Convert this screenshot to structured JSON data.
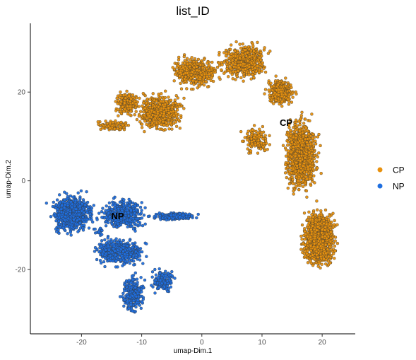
{
  "chart_data": {
    "type": "scatter",
    "title": "list_ID",
    "xlabel": "umap-Dim.1",
    "ylabel": "umap-Dim.2",
    "xlim": [
      -28.5,
      25.5
    ],
    "ylim": [
      -34.5,
      35.5
    ],
    "x_ticks": [
      -20,
      -10,
      0,
      10,
      20
    ],
    "y_ticks": [
      20,
      0,
      -20
    ],
    "x_tick_labels": [
      "-20",
      "-10",
      "0",
      "10",
      "20"
    ],
    "y_tick_labels": [
      "20",
      "0",
      "-20"
    ],
    "grid": false,
    "legend_position": "right",
    "legend": [
      {
        "name": "CP",
        "color": "#E8910E"
      },
      {
        "name": "NP",
        "color": "#1F6FE0"
      }
    ],
    "cluster_labels": [
      {
        "text": "CP",
        "x": 14,
        "y": 13
      },
      {
        "text": "NP",
        "x": -14,
        "y": -8
      }
    ],
    "series": [
      {
        "name": "CP",
        "color": "#E8910E",
        "regions": [
          {
            "x": [
              2,
              12
            ],
            "y": [
              22,
              32
            ],
            "n": 520
          },
          {
            "x": [
              -6,
              4
            ],
            "y": [
              20,
              29
            ],
            "n": 380
          },
          {
            "x": [
              -12,
              -2
            ],
            "y": [
              10,
              21
            ],
            "n": 560
          },
          {
            "x": [
              -15,
              -10
            ],
            "y": [
              14,
              21
            ],
            "n": 220
          },
          {
            "x": [
              -18,
              -11
            ],
            "y": [
              11,
              14
            ],
            "n": 90
          },
          {
            "x": [
              10,
              16
            ],
            "y": [
              16,
              24
            ],
            "n": 340
          },
          {
            "x": [
              13,
              20
            ],
            "y": [
              -5,
              17
            ],
            "n": 950
          },
          {
            "x": [
              6,
              12
            ],
            "y": [
              5,
              13
            ],
            "n": 140
          },
          {
            "x": [
              16,
              23
            ],
            "y": [
              -21,
              -5
            ],
            "n": 1150
          }
        ]
      },
      {
        "name": "NP",
        "color": "#1F6FE0",
        "regions": [
          {
            "x": [
              -26,
              -17
            ],
            "y": [
              -13,
              -2
            ],
            "n": 780
          },
          {
            "x": [
              -18,
              -8
            ],
            "y": [
              -12,
              -3
            ],
            "n": 460
          },
          {
            "x": [
              -9,
              0
            ],
            "y": [
              -9,
              -7
            ],
            "n": 230
          },
          {
            "x": [
              -19,
              -8
            ],
            "y": [
              -20,
              -12
            ],
            "n": 420
          },
          {
            "x": [
              -14,
              -9
            ],
            "y": [
              -31,
              -20
            ],
            "n": 260
          },
          {
            "x": [
              -9,
              -4
            ],
            "y": [
              -26,
              -19
            ],
            "n": 150
          },
          {
            "x": [
              -18,
              -16
            ],
            "y": [
              -13,
              -10
            ],
            "n": 18
          }
        ]
      }
    ]
  }
}
